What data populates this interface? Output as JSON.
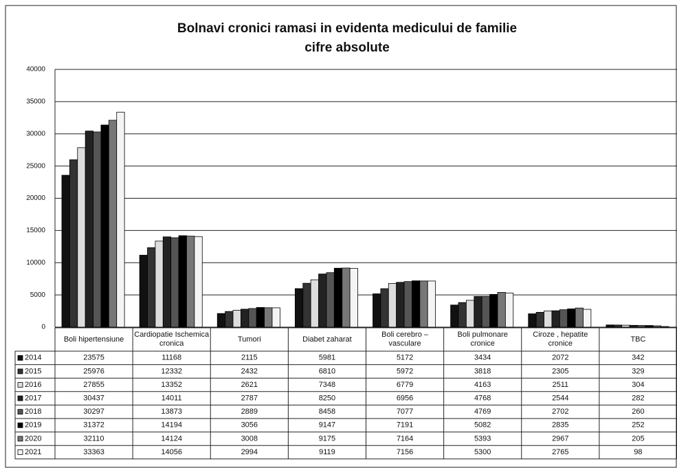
{
  "chart_data": {
    "type": "bar",
    "title": "Bolnavi cronici ramasi in evidenta medicului de familie",
    "subtitle": "cifre absolute",
    "categories": [
      "Boli hipertensiune",
      "Cardiopatie Ischemica cronica",
      "Tumori",
      "Diabet zaharat",
      "Boli cerebro – vasculare",
      "Boli pulmonare cronice",
      "Ciroze , hepatite cronice",
      "TBC"
    ],
    "series": [
      {
        "name": "2014",
        "color": "#111111",
        "values": [
          23575,
          11168,
          2115,
          5981,
          5172,
          3434,
          2072,
          342
        ]
      },
      {
        "name": "2015",
        "color": "#333333",
        "values": [
          25976,
          12332,
          2432,
          6810,
          5972,
          3818,
          2305,
          329
        ]
      },
      {
        "name": "2016",
        "color": "#dddddd",
        "values": [
          27855,
          13352,
          2621,
          7348,
          6779,
          4163,
          2511,
          304
        ]
      },
      {
        "name": "2017",
        "color": "#222222",
        "values": [
          30437,
          14011,
          2787,
          8250,
          6956,
          4768,
          2544,
          282
        ]
      },
      {
        "name": "2018",
        "color": "#555555",
        "values": [
          30297,
          13873,
          2889,
          8458,
          7077,
          4769,
          2702,
          260
        ]
      },
      {
        "name": "2019",
        "color": "#000000",
        "values": [
          31372,
          14194,
          3056,
          9147,
          7191,
          5082,
          2835,
          252
        ]
      },
      {
        "name": "2020",
        "color": "#777777",
        "values": [
          32110,
          14124,
          3008,
          9175,
          7164,
          5393,
          2967,
          205
        ]
      },
      {
        "name": "2021",
        "color": "#f4f4f4",
        "values": [
          33363,
          14056,
          2994,
          9119,
          7156,
          5300,
          2765,
          98
        ]
      }
    ],
    "ylim": [
      0,
      40000
    ],
    "yticks": [
      0,
      5000,
      10000,
      15000,
      20000,
      25000,
      30000,
      35000,
      40000
    ],
    "grid": true
  }
}
